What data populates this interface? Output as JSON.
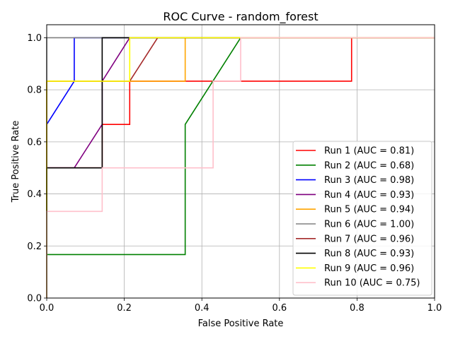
{
  "chart_data": {
    "type": "line",
    "title": "ROC Curve - random_forest",
    "xlabel": "False Positive Rate",
    "ylabel": "True Positive Rate",
    "xlim": [
      0.0,
      1.0
    ],
    "ylim": [
      0.0,
      1.05
    ],
    "x_ticks": [
      "0.0",
      "0.2",
      "0.4",
      "0.6",
      "0.8",
      "1.0"
    ],
    "y_ticks": [
      "0.0",
      "0.2",
      "0.4",
      "0.6",
      "0.8",
      "1.0"
    ],
    "grid": true,
    "legend_position": "lower-right",
    "series": [
      {
        "name": "Run 1 (AUC = 0.81)",
        "color": "#ff0000",
        "x": [
          0,
          0,
          0.143,
          0.143,
          0.214,
          0.214,
          0.786,
          0.786,
          1.0
        ],
        "y": [
          0,
          0.5,
          0.5,
          0.667,
          0.667,
          0.833,
          0.833,
          1.0,
          1.0
        ]
      },
      {
        "name": "Run 2 (AUC = 0.68)",
        "color": "#008000",
        "x": [
          0,
          0,
          0.357,
          0.357,
          0.5,
          0.5,
          1.0
        ],
        "y": [
          0,
          0.167,
          0.167,
          0.667,
          1.0,
          1.0,
          1.0
        ]
      },
      {
        "name": "Run 3 (AUC = 0.98)",
        "color": "#0000ff",
        "x": [
          0,
          0,
          0.071,
          0.071,
          1.0
        ],
        "y": [
          0,
          0.667,
          0.833,
          1.0,
          1.0
        ]
      },
      {
        "name": "Run 4 (AUC = 0.93)",
        "color": "#800080",
        "x": [
          0,
          0,
          0.071,
          0.143,
          0.143,
          0.214,
          1.0
        ],
        "y": [
          0,
          0.5,
          0.5,
          0.667,
          0.833,
          1.0,
          1.0
        ]
      },
      {
        "name": "Run 5 (AUC = 0.94)",
        "color": "#ffa500",
        "x": [
          0,
          0,
          0.357,
          0.357,
          1.0
        ],
        "y": [
          0,
          0.833,
          0.833,
          1.0,
          1.0
        ]
      },
      {
        "name": "Run 6 (AUC = 1.00)",
        "color": "#808080",
        "x": [
          0,
          0,
          1.0
        ],
        "y": [
          0,
          1.0,
          1.0
        ]
      },
      {
        "name": "Run 7 (AUC = 0.96)",
        "color": "#a52a2a",
        "x": [
          0,
          0,
          0.214,
          0.214,
          0.286,
          1.0
        ],
        "y": [
          0,
          0.833,
          0.833,
          0.833,
          1.0,
          1.0
        ]
      },
      {
        "name": "Run 8 (AUC = 0.93)",
        "color": "#000000",
        "x": [
          0,
          0,
          0.143,
          0.143,
          1.0
        ],
        "y": [
          0,
          0.5,
          0.5,
          1.0,
          1.0
        ]
      },
      {
        "name": "Run 9 (AUC = 0.96)",
        "color": "#ffff00",
        "x": [
          0,
          0,
          0.214,
          0.214,
          1.0
        ],
        "y": [
          0,
          0.833,
          0.833,
          1.0,
          1.0
        ]
      },
      {
        "name": "Run 10 (AUC = 0.75)",
        "color": "#ffc0cb",
        "x": [
          0,
          0,
          0.143,
          0.143,
          0.429,
          0.429,
          0.5,
          0.5,
          1.0
        ],
        "y": [
          0,
          0.333,
          0.333,
          0.5,
          0.5,
          0.833,
          0.833,
          1.0,
          1.0
        ]
      }
    ]
  }
}
